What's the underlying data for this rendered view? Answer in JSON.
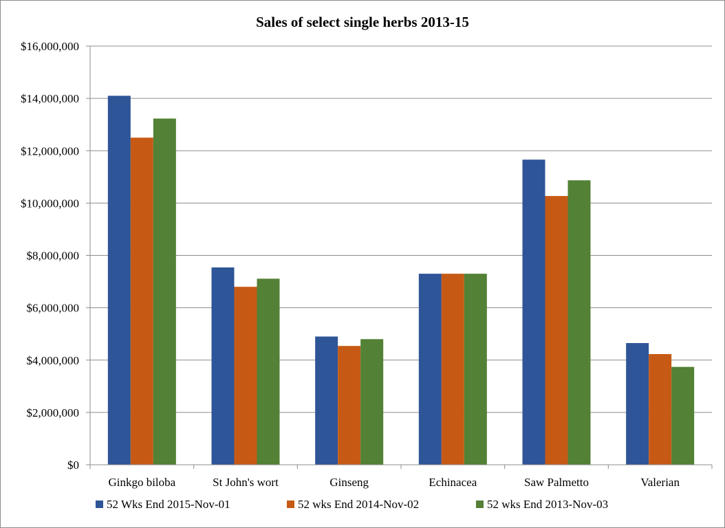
{
  "chart_data": {
    "type": "bar",
    "title": "Sales of select single herbs 2013-15",
    "xlabel": "",
    "ylabel": "",
    "categories": [
      "Ginkgo biloba",
      "St John's wort",
      "Ginseng",
      "Echinacea",
      "Saw Palmetto",
      "Valerian"
    ],
    "series": [
      {
        "name": "52 Wks End 2015-Nov-01",
        "color": "#2e5597",
        "values": [
          14100000,
          7540000,
          4900000,
          7300000,
          11660000,
          4650000
        ]
      },
      {
        "name": "52 wks End 2014-Nov-02",
        "color": "#c65a15",
        "values": [
          12500000,
          6800000,
          4540000,
          7300000,
          10270000,
          4230000
        ]
      },
      {
        "name": "52 wks End 2013-Nov-03",
        "color": "#538135",
        "values": [
          13230000,
          7110000,
          4800000,
          7300000,
          10870000,
          3740000
        ]
      }
    ],
    "ylim": [
      0,
      16000000
    ],
    "yticks": [
      "$0",
      "$2,000,000",
      "$4,000,000",
      "$6,000,000",
      "$8,000,000",
      "$10,000,000",
      "$12,000,000",
      "$14,000,000",
      "$16,000,000"
    ],
    "ytick_values": [
      0,
      2000000,
      4000000,
      6000000,
      8000000,
      10000000,
      12000000,
      14000000,
      16000000
    ],
    "grid": true,
    "legend_position": "bottom"
  }
}
